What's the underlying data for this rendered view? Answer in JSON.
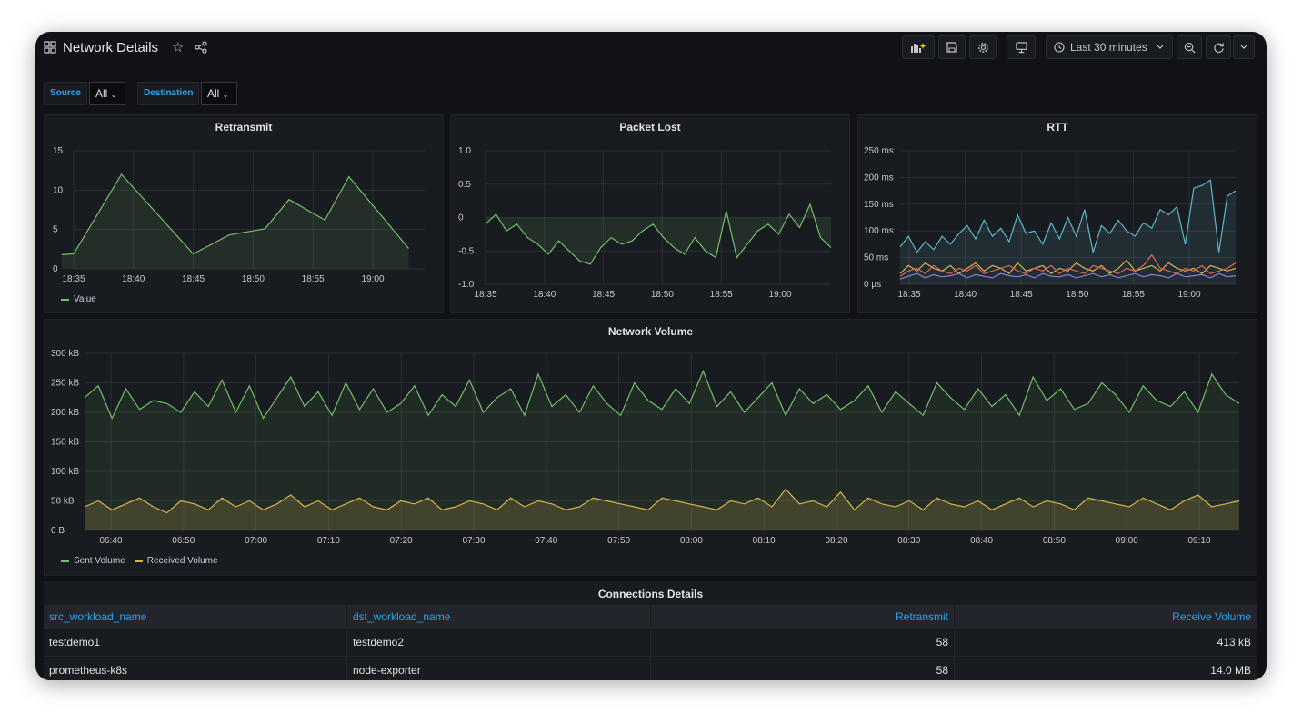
{
  "header": {
    "title": "Network Details",
    "time_range": "Last 30 minutes"
  },
  "variables": [
    {
      "label": "Source",
      "value": "All"
    },
    {
      "label": "Destination",
      "value": "All"
    }
  ],
  "colors": {
    "green": "#73bf69",
    "yellow": "#d6b44a",
    "cyan": "#5fb7c8",
    "accent_blue": "#33a2e5"
  },
  "panels": {
    "retransmit": {
      "title": "Retransmit",
      "legend": "Value"
    },
    "packet_lost": {
      "title": "Packet Lost"
    },
    "rtt": {
      "title": "RTT"
    },
    "network_volume": {
      "title": "Network Volume",
      "legend": [
        "Sent Volume",
        "Received Volume"
      ]
    },
    "connections": {
      "title": "Connections Details",
      "columns": [
        "src_workload_name",
        "dst_workload_name",
        "Retransmit",
        "Receive Volume"
      ],
      "rows": [
        [
          "testdemo1",
          "testdemo2",
          "58",
          "413 kB"
        ],
        [
          "prometheus-k8s",
          "node-exporter",
          "58",
          "14.0 MB"
        ]
      ]
    }
  },
  "chart_data": [
    {
      "type": "area",
      "title": "Retransmit",
      "x": [
        "18:34",
        "18:35",
        "18:39",
        "18:45",
        "18:48",
        "18:51",
        "18:53",
        "18:56",
        "18:58",
        "19:03"
      ],
      "x_ticks": [
        "18:35",
        "18:40",
        "18:45",
        "18:50",
        "18:55",
        "19:00"
      ],
      "y_ticks": [
        "0",
        "5",
        "10",
        "15"
      ],
      "ylim": [
        0,
        15
      ],
      "series": [
        {
          "name": "Value",
          "values": [
            1.8,
            1.9,
            12,
            1.9,
            4.3,
            5.1,
            8.8,
            6.2,
            11.7,
            2.6
          ]
        }
      ]
    },
    {
      "type": "area",
      "title": "Packet Lost",
      "x_ticks": [
        "18:35",
        "18:40",
        "18:45",
        "18:50",
        "18:55",
        "19:00"
      ],
      "y_ticks": [
        "-1.0",
        "-0.5",
        "0",
        "0.5",
        "1.0"
      ],
      "ylim": [
        -1,
        1
      ],
      "series": [
        {
          "values": [
            -0.1,
            0.05,
            -0.2,
            -0.1,
            -0.3,
            -0.4,
            -0.55,
            -0.35,
            -0.5,
            -0.65,
            -0.7,
            -0.45,
            -0.3,
            -0.4,
            -0.35,
            -0.2,
            -0.1,
            -0.3,
            -0.45,
            -0.55,
            -0.3,
            -0.5,
            -0.6,
            0.1,
            -0.6,
            -0.4,
            -0.2,
            -0.1,
            -0.25,
            0.05,
            -0.15,
            0.2,
            -0.3,
            -0.45
          ]
        }
      ]
    },
    {
      "type": "line",
      "title": "RTT",
      "x_ticks": [
        "18:35",
        "18:40",
        "18:45",
        "18:50",
        "18:55",
        "19:00"
      ],
      "y_ticks": [
        "0 µs",
        "50 ms",
        "100 ms",
        "150 ms",
        "200 ms",
        "250 ms"
      ],
      "ylim": [
        0,
        250
      ],
      "series": [
        {
          "values": [
            70,
            90,
            60,
            80,
            65,
            90,
            75,
            95,
            110,
            85,
            120,
            90,
            105,
            80,
            130,
            95,
            100,
            75,
            115,
            85,
            125,
            90,
            140,
            60,
            110,
            95,
            120,
            100,
            90,
            115,
            105,
            140,
            130,
            145,
            75,
            180,
            185,
            195,
            60,
            165,
            175
          ]
        },
        {
          "values": [
            20,
            35,
            25,
            40,
            30,
            25,
            35,
            20,
            30,
            40,
            25,
            35,
            30,
            20,
            40,
            25,
            30,
            35,
            20,
            30,
            25,
            40,
            30,
            25,
            35,
            20,
            30,
            45,
            25,
            30,
            35,
            25,
            40,
            30,
            25,
            30,
            20,
            35,
            30,
            25,
            30
          ]
        },
        {
          "values": [
            15,
            25,
            30,
            20,
            35,
            25,
            20,
            30,
            25,
            35,
            20,
            25,
            30,
            35,
            25,
            20,
            30,
            25,
            35,
            20,
            30,
            25,
            20,
            35,
            30,
            25,
            20,
            30,
            25,
            35,
            55,
            30,
            25,
            20,
            30,
            25,
            35,
            20,
            25,
            30,
            40
          ]
        },
        {
          "values": [
            10,
            15,
            20,
            12,
            18,
            14,
            16,
            20,
            12,
            18,
            15,
            12,
            20,
            16,
            14,
            18,
            12,
            20,
            15,
            14,
            18,
            12,
            16,
            20,
            14,
            18,
            12,
            16,
            20,
            14,
            18,
            16,
            12,
            20,
            14,
            16,
            18,
            12,
            20,
            14,
            16
          ]
        }
      ]
    },
    {
      "type": "area",
      "title": "Network Volume",
      "x_ticks": [
        "06:40",
        "06:50",
        "07:00",
        "07:10",
        "07:20",
        "07:30",
        "07:40",
        "07:50",
        "08:00",
        "08:10",
        "08:20",
        "08:30",
        "08:40",
        "08:50",
        "09:00",
        "09:10"
      ],
      "y_ticks": [
        "0 B",
        "50 kB",
        "100 kB",
        "150 kB",
        "200 kB",
        "250 kB",
        "300 kB"
      ],
      "ylim": [
        0,
        300
      ],
      "series": [
        {
          "name": "Sent Volume",
          "values": [
            225,
            245,
            190,
            240,
            205,
            220,
            215,
            200,
            235,
            210,
            255,
            200,
            245,
            190,
            225,
            260,
            210,
            235,
            195,
            250,
            205,
            240,
            200,
            215,
            245,
            195,
            230,
            210,
            255,
            200,
            225,
            240,
            195,
            265,
            210,
            230,
            200,
            245,
            215,
            195,
            250,
            220,
            205,
            240,
            215,
            270,
            210,
            235,
            200,
            225,
            250,
            195,
            240,
            215,
            230,
            205,
            220,
            245,
            200,
            235,
            215,
            195,
            250,
            225,
            205,
            240,
            210,
            230,
            195,
            260,
            220,
            240,
            205,
            215,
            250,
            230,
            200,
            245,
            220,
            210,
            235,
            200,
            265,
            230,
            215
          ]
        },
        {
          "name": "Received Volume",
          "values": [
            40,
            50,
            35,
            45,
            55,
            40,
            30,
            50,
            45,
            35,
            55,
            40,
            50,
            35,
            45,
            60,
            40,
            50,
            35,
            45,
            55,
            40,
            35,
            50,
            45,
            55,
            35,
            40,
            50,
            45,
            35,
            55,
            40,
            50,
            45,
            35,
            40,
            55,
            50,
            45,
            40,
            35,
            55,
            50,
            45,
            40,
            35,
            50,
            45,
            55,
            40,
            70,
            45,
            50,
            40,
            65,
            35,
            55,
            45,
            40,
            50,
            35,
            55,
            45,
            40,
            50,
            35,
            45,
            55,
            40,
            50,
            45,
            35,
            55,
            50,
            45,
            40,
            55,
            45,
            35,
            50,
            60,
            40,
            45,
            50
          ]
        }
      ]
    }
  ]
}
